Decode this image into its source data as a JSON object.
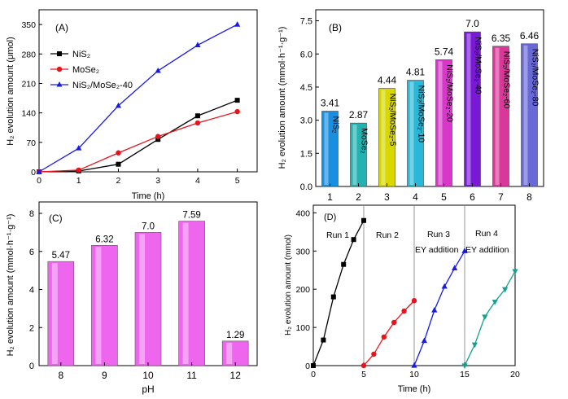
{
  "colors": {
    "nis2": "#000000",
    "mose2": "#e8141c",
    "composite": "#1a1ae6",
    "run1": "#000000",
    "run2": "#e8141c",
    "run3": "#1a1ae6",
    "run4": "#16a090",
    "bar_pink": "#ee66ee",
    "divider": "#888888"
  },
  "chart_data": [
    {
      "id": "A",
      "panel_label": "(A)",
      "type": "line",
      "xlabel": "Time (h)",
      "ylabel": "H₂ evolution amount (μmol)",
      "xlim": [
        0,
        5.5
      ],
      "ylim": [
        0,
        385
      ],
      "xticks": [
        "0",
        "1",
        "2",
        "3",
        "4",
        "5"
      ],
      "yticks": [
        "0",
        "70",
        "140",
        "210",
        "280",
        "350"
      ],
      "legend_position": "upper-left",
      "series": [
        {
          "name": "NiS₂",
          "color": "#000000",
          "marker": "square",
          "x": [
            0,
            1,
            2,
            3,
            4,
            5
          ],
          "y": [
            0,
            2,
            18,
            77,
            133,
            170
          ]
        },
        {
          "name": "MoSe₂",
          "color": "#e8141c",
          "marker": "circle",
          "x": [
            0,
            1,
            2,
            3,
            4,
            5
          ],
          "y": [
            0,
            4,
            45,
            84,
            116,
            143
          ]
        },
        {
          "name": "NiS₂/MoSe₂-40",
          "color": "#1a1ae6",
          "marker": "triangle",
          "x": [
            0,
            1,
            2,
            3,
            4,
            5
          ],
          "y": [
            0,
            56,
            157,
            240,
            301,
            350
          ]
        }
      ]
    },
    {
      "id": "B",
      "panel_label": "(B)",
      "type": "bar",
      "xlabel": "",
      "ylabel": "H₂ evolution amount (mmol·h⁻¹·g⁻¹)",
      "ylim": [
        0,
        8
      ],
      "yticks": [
        "0.0",
        "1.5",
        "3.0",
        "4.5",
        "6.0",
        "7.5"
      ],
      "categories": [
        "1",
        "2",
        "3",
        "4",
        "5",
        "6",
        "7",
        "8"
      ],
      "values": [
        3.41,
        2.87,
        4.44,
        4.81,
        5.74,
        7.0,
        6.35,
        6.46
      ],
      "value_labels": [
        "3.41",
        "2.87",
        "4.44",
        "4.81",
        "5.74",
        "7.0",
        "6.35",
        "6.46"
      ],
      "bar_names": [
        "NiS₂",
        "MoSe₂",
        "NiS₂/MoSe₂-5",
        "NiS₂/MoSe₂-10",
        "NiS₂/MoSe₂-20",
        "NiS₂/MoSe₂-40",
        "NiS₂/MoSe₂-60",
        "NiS₂/MoSe₂-80"
      ],
      "bar_colors": [
        "#1a8fe0",
        "#22b2b2",
        "#d8d800",
        "#28b8d8",
        "#d838c8",
        "#7a18d8",
        "#d83898",
        "#6868d8"
      ]
    },
    {
      "id": "C",
      "panel_label": "(C)",
      "type": "bar",
      "xlabel": "pH",
      "ylabel": "H₂ evolution amount (mmol·h⁻¹·g⁻¹)",
      "ylim": [
        0,
        8.6
      ],
      "yticks": [
        "0",
        "2",
        "4",
        "6",
        "8"
      ],
      "categories": [
        "8",
        "9",
        "10",
        "11",
        "12"
      ],
      "values": [
        5.47,
        6.32,
        7.0,
        7.59,
        1.29
      ],
      "value_labels": [
        "5.47",
        "6.32",
        "7.0",
        "7.59",
        "1.29"
      ]
    },
    {
      "id": "D",
      "panel_label": "(D)",
      "type": "line",
      "xlabel": "Time (h)",
      "ylabel": "H₂ evolution amount (mmol)",
      "xlim": [
        0,
        20
      ],
      "ylim": [
        0,
        420
      ],
      "xticks": [
        "0",
        "5",
        "10",
        "15",
        "20"
      ],
      "yticks": [
        "0",
        "100",
        "200",
        "300",
        "400"
      ],
      "dividers_x": [
        5,
        10,
        15
      ],
      "annotations": [
        "Run 1",
        "Run 2",
        "Run 3",
        "EY addition",
        "Run 4",
        "EY addition"
      ],
      "series": [
        {
          "name": "Run 1",
          "color": "#000000",
          "marker": "square",
          "x": [
            0,
            1,
            2,
            3,
            4,
            5
          ],
          "y": [
            0,
            67,
            180,
            265,
            330,
            380
          ]
        },
        {
          "name": "Run 2",
          "color": "#e8141c",
          "marker": "circle",
          "x": [
            5,
            6,
            7,
            8,
            9,
            10
          ],
          "y": [
            0,
            30,
            75,
            113,
            143,
            170
          ]
        },
        {
          "name": "Run 3",
          "color": "#1a1ae6",
          "marker": "triangle",
          "x": [
            10,
            11,
            12,
            13,
            14,
            15
          ],
          "y": [
            0,
            65,
            145,
            207,
            255,
            300
          ]
        },
        {
          "name": "Run 4",
          "color": "#16a090",
          "marker": "triangle-down",
          "x": [
            15,
            16,
            17,
            18,
            19,
            20
          ],
          "y": [
            0,
            55,
            128,
            167,
            200,
            247
          ]
        }
      ]
    }
  ]
}
